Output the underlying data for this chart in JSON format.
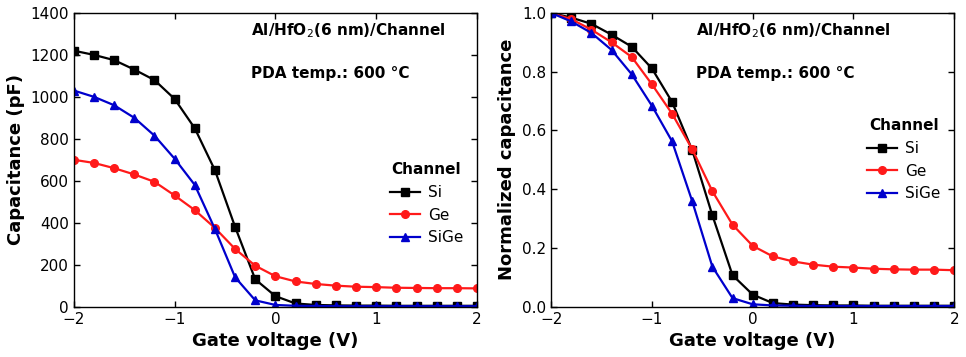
{
  "title_line1": "Al/HfO$_2$(6 nm)/Channel",
  "title_line2": "PDA temp.: 600 °C",
  "legend_title": "Channel",
  "xlabel": "Gate voltage (V)",
  "ylabel_left": "Capacitance (pF)",
  "ylabel_right": "Normalized capacitance",
  "xlim": [
    -2,
    2
  ],
  "ylim_left": [
    0,
    1400
  ],
  "ylim_right": [
    0.0,
    1.0
  ],
  "yticks_left": [
    0,
    200,
    400,
    600,
    800,
    1000,
    1200,
    1400
  ],
  "yticks_right": [
    0.0,
    0.2,
    0.4,
    0.6,
    0.8,
    1.0
  ],
  "xticks": [
    -2,
    -1,
    0,
    1,
    2
  ],
  "Si_x": [
    -2.0,
    -1.8,
    -1.6,
    -1.4,
    -1.2,
    -1.0,
    -0.8,
    -0.6,
    -0.4,
    -0.2,
    0.0,
    0.2,
    0.4,
    0.6,
    0.8,
    1.0,
    1.2,
    1.4,
    1.6,
    1.8,
    2.0
  ],
  "Si_y": [
    1220,
    1200,
    1175,
    1130,
    1080,
    990,
    850,
    650,
    380,
    130,
    50,
    15,
    8,
    6,
    5,
    5,
    4,
    4,
    4,
    4,
    4
  ],
  "Ge_x": [
    -2.0,
    -1.8,
    -1.6,
    -1.4,
    -1.2,
    -1.0,
    -0.8,
    -0.6,
    -0.4,
    -0.2,
    0.0,
    0.2,
    0.4,
    0.6,
    0.8,
    1.0,
    1.2,
    1.4,
    1.6,
    1.8,
    2.0
  ],
  "Ge_y": [
    700,
    685,
    660,
    630,
    595,
    530,
    460,
    375,
    275,
    195,
    145,
    120,
    108,
    100,
    95,
    93,
    90,
    89,
    88,
    88,
    87
  ],
  "SiGe_x": [
    -2.0,
    -1.8,
    -1.6,
    -1.4,
    -1.2,
    -1.0,
    -0.8,
    -0.6,
    -0.4,
    -0.2,
    0.0,
    0.2,
    0.4,
    0.6,
    0.8,
    1.0,
    1.2,
    1.4,
    1.6,
    1.8,
    2.0
  ],
  "SiGe_y": [
    1030,
    1000,
    960,
    900,
    815,
    705,
    580,
    370,
    140,
    30,
    8,
    4,
    3,
    2,
    2,
    2,
    2,
    2,
    2,
    2,
    2
  ],
  "Si_norm_x": [
    -2.0,
    -1.8,
    -1.6,
    -1.4,
    -1.2,
    -1.0,
    -0.8,
    -0.6,
    -0.4,
    -0.2,
    0.0,
    0.2,
    0.4,
    0.6,
    0.8,
    1.0,
    1.2,
    1.4,
    1.6,
    1.8,
    2.0
  ],
  "Si_norm_y": [
    1.0,
    0.984,
    0.963,
    0.926,
    0.885,
    0.811,
    0.697,
    0.533,
    0.311,
    0.107,
    0.041,
    0.012,
    0.007,
    0.005,
    0.004,
    0.004,
    0.003,
    0.003,
    0.003,
    0.003,
    0.003
  ],
  "Ge_norm_x": [
    -2.0,
    -1.8,
    -1.6,
    -1.4,
    -1.2,
    -1.0,
    -0.8,
    -0.6,
    -0.4,
    -0.2,
    0.0,
    0.2,
    0.4,
    0.6,
    0.8,
    1.0,
    1.2,
    1.4,
    1.6,
    1.8,
    2.0
  ],
  "Ge_norm_y": [
    1.0,
    0.979,
    0.943,
    0.9,
    0.85,
    0.757,
    0.657,
    0.536,
    0.393,
    0.279,
    0.207,
    0.171,
    0.154,
    0.143,
    0.136,
    0.133,
    0.129,
    0.127,
    0.126,
    0.126,
    0.124
  ],
  "SiGe_norm_x": [
    -2.0,
    -1.8,
    -1.6,
    -1.4,
    -1.2,
    -1.0,
    -0.8,
    -0.6,
    -0.4,
    -0.2,
    0.0,
    0.2,
    0.4,
    0.6,
    0.8,
    1.0,
    1.2,
    1.4,
    1.6,
    1.8,
    2.0
  ],
  "SiGe_norm_y": [
    1.0,
    0.971,
    0.932,
    0.874,
    0.791,
    0.684,
    0.563,
    0.359,
    0.136,
    0.029,
    0.008,
    0.004,
    0.003,
    0.002,
    0.002,
    0.002,
    0.002,
    0.002,
    0.002,
    0.002,
    0.002
  ],
  "color_Si": "#000000",
  "color_Ge": "#ff1a1a",
  "color_SiGe": "#0000cc",
  "marker_Si": "s",
  "marker_Ge": "o",
  "marker_SiGe": "^",
  "markersize": 5.5,
  "linewidth": 1.6,
  "text_color": "#000000",
  "annotation_fontsize": 11,
  "legend_fontsize": 11,
  "axis_label_fontsize": 13,
  "tick_fontsize": 11
}
